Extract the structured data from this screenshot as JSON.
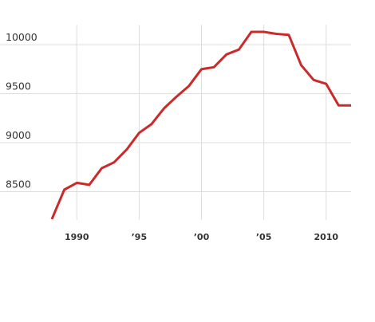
{
  "chart_data": {
    "type": "line",
    "title": "",
    "xlabel": "",
    "ylabel": "",
    "x": [
      1988,
      1989,
      1990,
      1991,
      1992,
      1993,
      1994,
      1995,
      1996,
      1997,
      1998,
      1999,
      2000,
      2001,
      2002,
      2003,
      2004,
      2005,
      2006,
      2007,
      2008,
      2009,
      2010,
      2011,
      2012
    ],
    "series": [
      {
        "color": "#cc2929",
        "values": [
          8220,
          8520,
          8590,
          8570,
          8740,
          8800,
          8930,
          9100,
          9190,
          9350,
          9470,
          9580,
          9750,
          9770,
          9900,
          9950,
          10130,
          10130,
          10110,
          10100,
          9790,
          9640,
          9600,
          9380,
          9380
        ]
      }
    ],
    "xticks": [
      1990,
      1995,
      2000,
      2005,
      2010
    ],
    "xtick_labels": [
      "1990",
      "’95",
      "’00",
      "’05",
      "2010"
    ],
    "yticks": [
      8500,
      9000,
      9500,
      10000
    ],
    "ytick_labels": [
      "8500",
      "9000",
      "9500",
      "10000"
    ],
    "xlim": [
      1988,
      2012
    ],
    "ylim": [
      8200,
      10200
    ],
    "grid": true,
    "legend": "none"
  }
}
